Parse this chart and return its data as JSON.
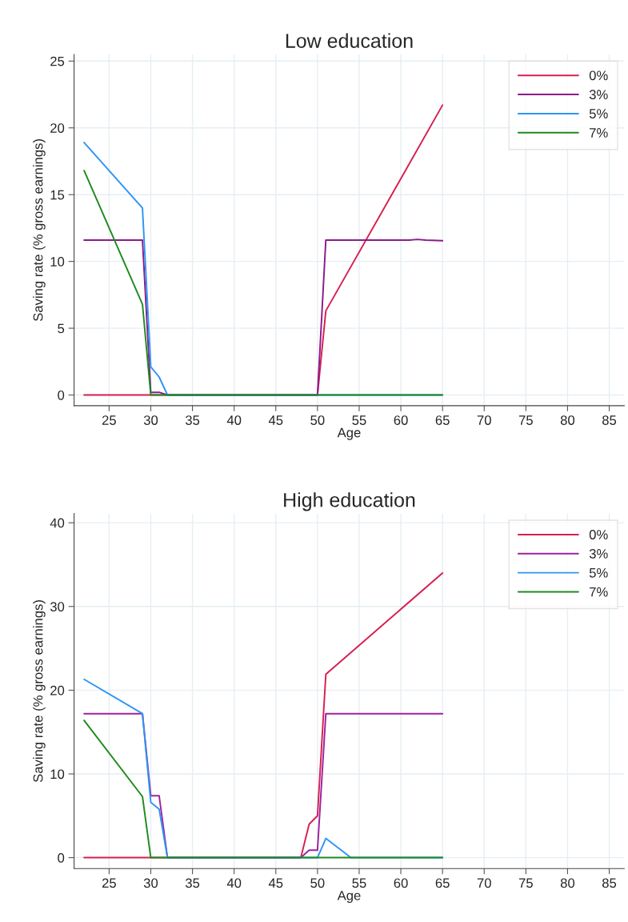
{
  "chart_data": [
    {
      "type": "line",
      "title": "Low education",
      "xlabel": "Age",
      "ylabel": "Saving rate (% gross earnings)",
      "xlim": [
        20.8,
        86.8
      ],
      "xticks": [
        25,
        30,
        35,
        40,
        45,
        50,
        55,
        60,
        65,
        70,
        75,
        80,
        85
      ],
      "ylim": [
        -0.8,
        25.5
      ],
      "yticks": [
        0,
        5,
        10,
        15,
        20,
        25
      ],
      "grid": true,
      "legend": "top right",
      "series": [
        {
          "name": "0%",
          "color": "#d6204f",
          "x": [
            22,
            30,
            50,
            51,
            65
          ],
          "values": [
            0,
            0,
            0,
            6.3,
            21.7
          ]
        },
        {
          "name": "3%",
          "color": "#8b1a8b",
          "x": [
            22,
            29,
            30,
            31,
            32,
            50,
            51,
            53,
            55,
            57,
            59,
            61,
            62,
            63,
            65
          ],
          "values": [
            11.6,
            11.6,
            0.2,
            0.2,
            0,
            0,
            11.6,
            11.6,
            11.6,
            11.6,
            11.6,
            11.6,
            11.65,
            11.6,
            11.55
          ]
        },
        {
          "name": "5%",
          "color": "#2e95f5",
          "x": [
            22,
            29,
            30,
            31,
            32,
            65
          ],
          "values": [
            18.9,
            14.0,
            2.1,
            1.35,
            0,
            0
          ]
        },
        {
          "name": "7%",
          "color": "#1f8a1f",
          "x": [
            22,
            29,
            30,
            65
          ],
          "values": [
            16.8,
            6.8,
            0,
            0
          ]
        }
      ]
    },
    {
      "type": "line",
      "title": "High education",
      "xlabel": "Age",
      "ylabel": "Saving rate (% gross earnings)",
      "xlim": [
        20.8,
        86.8
      ],
      "xticks": [
        25,
        30,
        35,
        40,
        45,
        50,
        55,
        60,
        65,
        70,
        75,
        80,
        85
      ],
      "ylim": [
        -1.3,
        41.1
      ],
      "yticks": [
        0,
        10,
        20,
        30,
        40
      ],
      "grid": true,
      "legend": "top right",
      "series": [
        {
          "name": "0%",
          "color": "#d6204f",
          "x": [
            22,
            48,
            49,
            50,
            51,
            65
          ],
          "values": [
            0,
            0,
            4.0,
            5.0,
            21.9,
            34.0
          ]
        },
        {
          "name": "3%",
          "color": "#a021a0",
          "x": [
            22,
            29,
            30,
            31,
            32,
            48,
            49,
            50,
            51,
            53,
            55,
            57,
            59,
            61,
            63,
            65
          ],
          "values": [
            17.2,
            17.2,
            7.4,
            7.4,
            0,
            0,
            0.9,
            0.9,
            17.2,
            17.2,
            17.2,
            17.2,
            17.2,
            17.2,
            17.2,
            17.2
          ]
        },
        {
          "name": "5%",
          "color": "#2e95f5",
          "x": [
            22,
            29,
            30,
            31,
            32,
            50,
            51,
            54,
            65
          ],
          "values": [
            21.3,
            17.2,
            6.6,
            5.8,
            0,
            0,
            2.3,
            0,
            0
          ]
        },
        {
          "name": "7%",
          "color": "#1f8a1f",
          "x": [
            22,
            29,
            30,
            65
          ],
          "values": [
            16.4,
            7.3,
            0,
            0
          ]
        }
      ]
    }
  ]
}
